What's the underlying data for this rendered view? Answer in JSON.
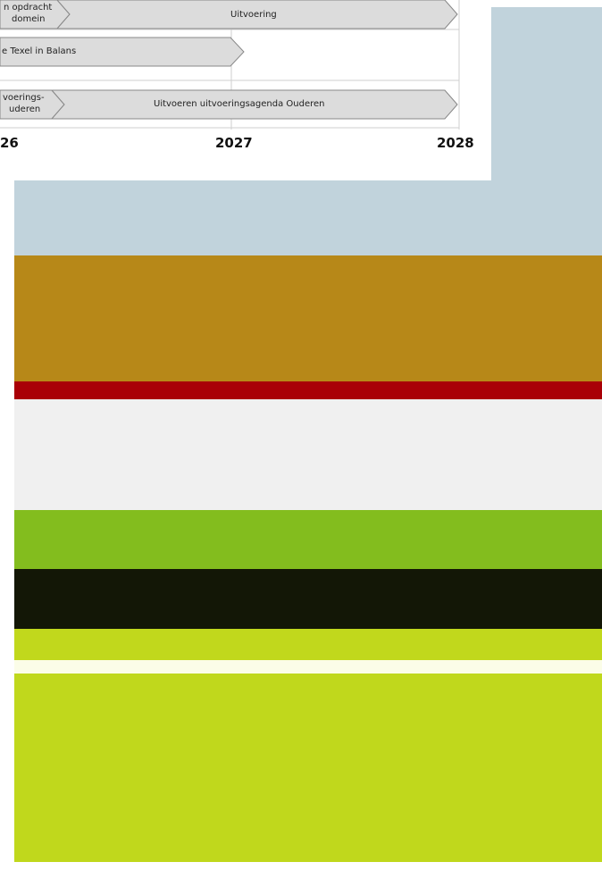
{
  "diagram": {
    "bars": [
      {
        "left_label_line1": "n opdracht",
        "left_label_line2": "domein",
        "main_label": "Uitvoering"
      },
      {
        "left_label": "e Texel in Balans"
      },
      {
        "left_label_line1": "voerings-",
        "left_label_line2": "uderen",
        "main_label": "Uitvoeren uitvoeringsagenda Ouderen"
      }
    ],
    "years": [
      "26",
      "2027",
      "2028"
    ]
  },
  "background": {
    "colors": [
      "#c1d3dc",
      "#b78818",
      "#a90007",
      "#f0f0f0",
      "#83bd1e",
      "#131706",
      "#c1d81c",
      "#fbfde8",
      "#c0d81c"
    ]
  }
}
